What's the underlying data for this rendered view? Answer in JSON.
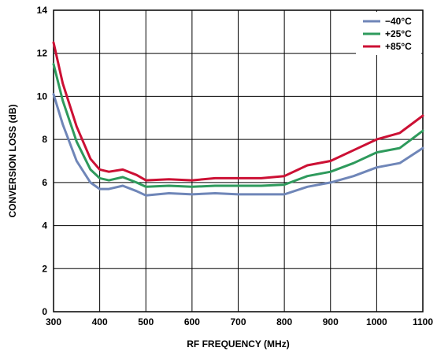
{
  "chart_data": {
    "type": "line",
    "title": "",
    "xlabel": "RF FREQUENCY (MHz)",
    "ylabel": "CONVERSION LOSS (dB)",
    "xlim": [
      300,
      1100
    ],
    "ylim": [
      0,
      14
    ],
    "xticks": [
      300,
      400,
      500,
      600,
      700,
      800,
      900,
      1000,
      1100
    ],
    "yticks": [
      0,
      2,
      4,
      6,
      8,
      10,
      12,
      14
    ],
    "grid": true,
    "legend_position": "top-right",
    "series": [
      {
        "name": "−40°C",
        "color": "#6f86b8",
        "x": [
          300,
          320,
          350,
          380,
          400,
          420,
          450,
          480,
          500,
          550,
          600,
          650,
          700,
          750,
          800,
          850,
          900,
          950,
          1000,
          1050,
          1100
        ],
        "y": [
          10.1,
          8.7,
          7.0,
          6.0,
          5.7,
          5.7,
          5.85,
          5.6,
          5.4,
          5.5,
          5.45,
          5.5,
          5.45,
          5.45,
          5.45,
          5.8,
          6.0,
          6.3,
          6.7,
          6.9,
          7.6
        ]
      },
      {
        "name": "+25°C",
        "color": "#2e9a5c",
        "x": [
          300,
          320,
          350,
          380,
          400,
          420,
          450,
          480,
          500,
          550,
          600,
          650,
          700,
          750,
          800,
          850,
          900,
          950,
          1000,
          1050,
          1100
        ],
        "y": [
          11.5,
          9.8,
          7.9,
          6.6,
          6.2,
          6.1,
          6.25,
          6.0,
          5.8,
          5.85,
          5.8,
          5.85,
          5.85,
          5.85,
          5.9,
          6.3,
          6.5,
          6.9,
          7.4,
          7.6,
          8.4
        ]
      },
      {
        "name": "+85°C",
        "color": "#cc1034",
        "x": [
          300,
          320,
          350,
          380,
          400,
          420,
          450,
          480,
          500,
          550,
          600,
          650,
          700,
          750,
          800,
          850,
          900,
          950,
          1000,
          1050,
          1100
        ],
        "y": [
          12.5,
          10.6,
          8.6,
          7.1,
          6.6,
          6.5,
          6.6,
          6.35,
          6.1,
          6.15,
          6.1,
          6.2,
          6.2,
          6.2,
          6.3,
          6.8,
          7.0,
          7.5,
          8.0,
          8.3,
          9.1
        ]
      }
    ]
  }
}
